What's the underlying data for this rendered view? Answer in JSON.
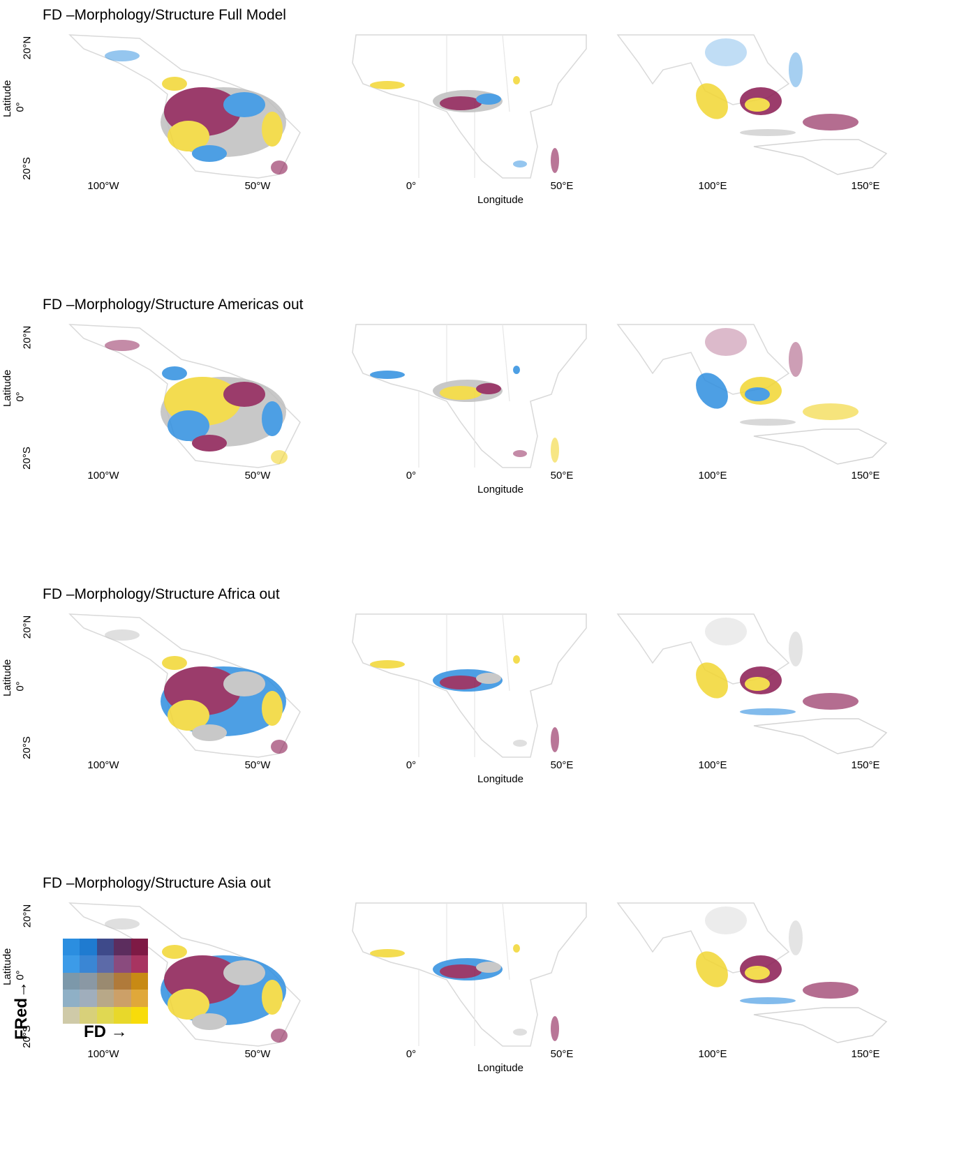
{
  "panels": [
    {
      "title": "FD –Morphology/Structure Full Model"
    },
    {
      "title": "FD –Morphology/Structure Americas out"
    },
    {
      "title": "FD –Morphology/Structure Africa out"
    },
    {
      "title": "FD –Morphology/Structure Asia out"
    }
  ],
  "axes": {
    "y_label": "Latitude",
    "x_label": "Longitude",
    "y_ticks": [
      "20°N",
      "0°",
      "20°S"
    ],
    "x_ticks": [
      "100°W",
      "50°W",
      "0°",
      "50°E",
      "100°E",
      "150°E"
    ]
  },
  "legend": {
    "y_label": "FRed→",
    "x_label": "FD →",
    "grid_colors": [
      [
        "#2b8ee0",
        "#1f7bd0",
        "#3e4a8a",
        "#5c2d5e",
        "#7e1a45"
      ],
      [
        "#3c9be8",
        "#3a86d4",
        "#5c6aa8",
        "#8a4b7e",
        "#a83461"
      ],
      [
        "#7c98aa",
        "#8a98a4",
        "#9a8a70",
        "#b07a3a",
        "#c88a14"
      ],
      [
        "#8fb0c6",
        "#a0aebc",
        "#b8a888",
        "#cca068",
        "#e0a83a"
      ],
      [
        "#cfcaa8",
        "#d8d07a",
        "#e0d852",
        "#e8d82a",
        "#f8dc0a"
      ]
    ]
  },
  "colors": {
    "land_outline": "#d9d9d9",
    "country_border": "#e0e0e0",
    "low_fd_grey": "#bfbfbf",
    "high_fred": "#8a1b52",
    "high_fd": "#f2d632",
    "blue": "#2f8fe0"
  }
}
